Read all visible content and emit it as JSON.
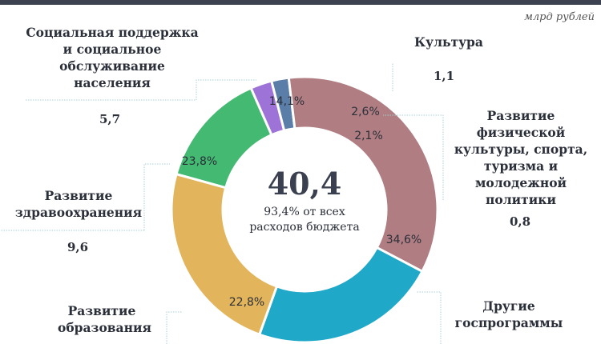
{
  "unit_label": "млрд рублей",
  "center": {
    "total": "40,4",
    "subtitle_line1": "93,4% от всех",
    "subtitle_line2": "расходов бюджета"
  },
  "chart_data": {
    "type": "pie",
    "variant": "donut",
    "unit": "млрд рублей",
    "slices": [
      {
        "label": "Социальная поддержка и социальное обслуживание населения",
        "value": 5.7,
        "value_text": "5,7",
        "percent_text": "14,1%",
        "color": "#43b971"
      },
      {
        "label": "Культура",
        "value": 1.1,
        "value_text": "1,1",
        "percent_text": "2,6%",
        "color": "#9e73d8"
      },
      {
        "label": "Развитие физической культуры, спорта, туризма и молодежной политики",
        "value": 0.8,
        "value_text": "0,8",
        "percent_text": "2,1%",
        "color": "#5a7ea8"
      },
      {
        "label": "Другие госпрограммы",
        "value": null,
        "value_text": "",
        "percent_text": "34,6%",
        "color": "#b07e82"
      },
      {
        "label": "Развитие образования",
        "value": null,
        "value_text": "",
        "percent_text": "22,8%",
        "color": "#1fa8c8"
      },
      {
        "label": "Развитие здравоохранения",
        "value": 9.6,
        "value_text": "9,6",
        "percent_text": "23,8%",
        "color": "#e2b45b"
      }
    ],
    "percents": [
      14.1,
      2.6,
      2.1,
      34.6,
      22.8,
      23.8
    ]
  },
  "labels": {
    "social_l1": "Социальная поддержка",
    "social_l2": "и социальное",
    "social_l3": "обслуживание",
    "social_l4": "населения",
    "culture": "Культура",
    "sport_l1": "Развитие физической",
    "sport_l2": "культуры, спорта,",
    "sport_l3": "туризма и",
    "sport_l4": "молодежной",
    "sport_l5": "политики",
    "other_l1": "Другие",
    "other_l2": "госпрограммы",
    "edu_l1": "Развитие",
    "edu_l2": "образования",
    "health_l1": "Развитие",
    "health_l2": "здравоохранения"
  }
}
